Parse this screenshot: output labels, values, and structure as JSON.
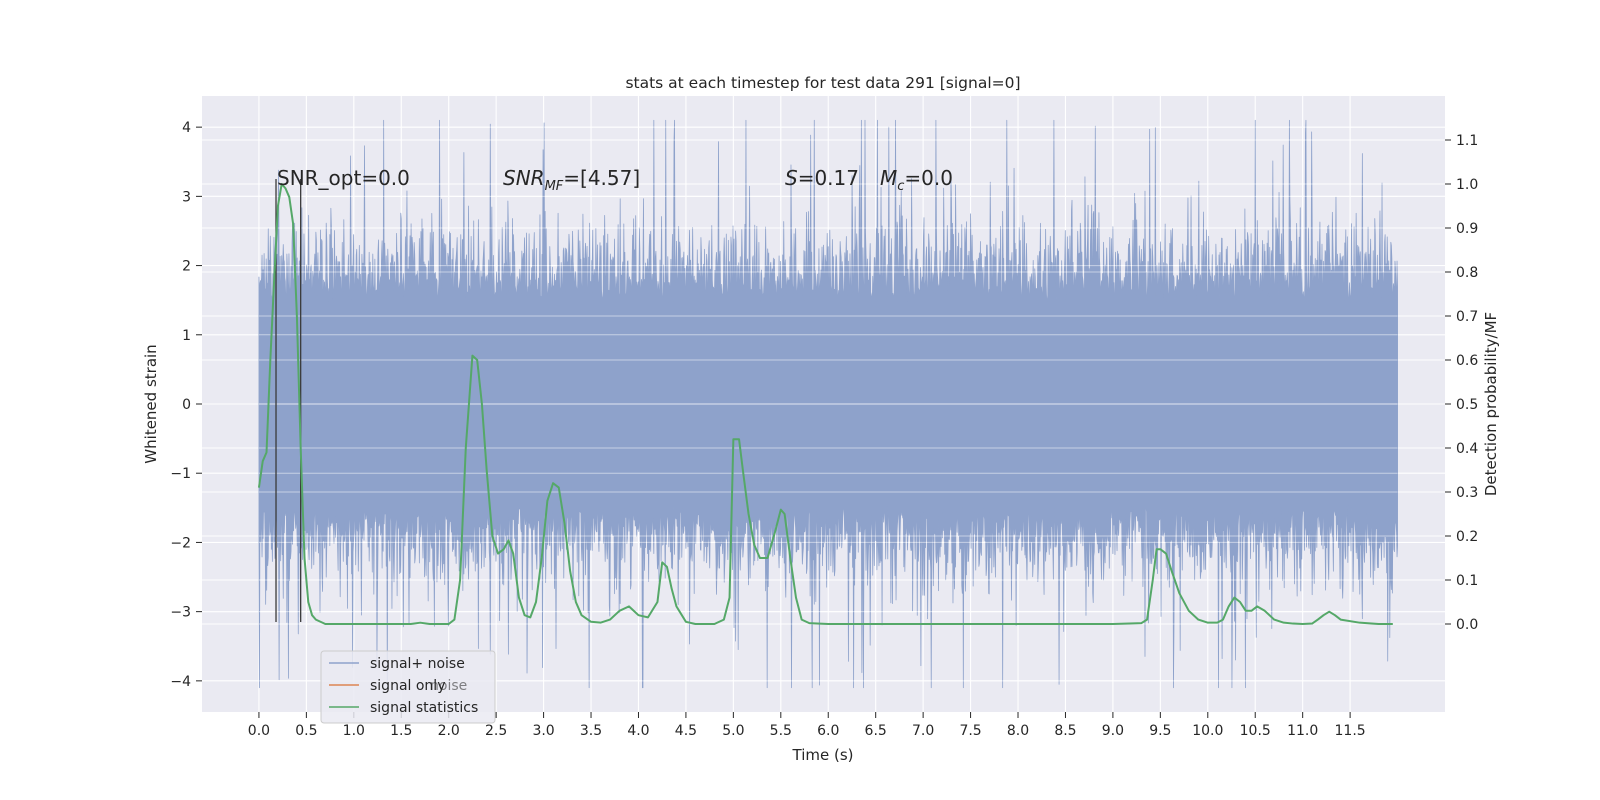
{
  "chart_data": {
    "type": "line",
    "title": "stats at each timestep for test data 291 [signal=0]",
    "xlabel": "Time (s)",
    "ylabel": "Whitened strain",
    "ylabel_right": "Detection probability/MF",
    "xlim": [
      -0.6,
      12.5
    ],
    "ylim": [
      -4.45,
      4.45
    ],
    "ylim_right": [
      -0.2,
      1.2
    ],
    "x_ticks": [
      0.0,
      0.5,
      1.0,
      1.5,
      2.0,
      2.5,
      3.0,
      3.5,
      4.0,
      4.5,
      5.0,
      5.5,
      6.0,
      6.5,
      7.0,
      7.5,
      8.0,
      8.5,
      9.0,
      9.5,
      10.0,
      10.5,
      11.0,
      11.5
    ],
    "x_tick_labels": [
      "0.0",
      "0.5",
      "1.0",
      "1.5",
      "2.0",
      "2.5",
      "3.0",
      "3.5",
      "4.0",
      "4.5",
      "5.0",
      "5.5",
      "6.0",
      "6.5",
      "7.0",
      "7.5",
      "8.0",
      "8.5",
      "9.0",
      "9.5",
      "10.0",
      "10.5",
      "11.0",
      "11.5"
    ],
    "y_ticks": [
      4,
      3,
      2,
      1,
      0,
      -1,
      -2,
      -3,
      -4
    ],
    "y_tick_labels": [
      "4",
      "3",
      "2",
      "1",
      "0",
      "−1",
      "−2",
      "−3",
      "−4"
    ],
    "y_right_ticks": [
      1.1,
      1.0,
      0.9,
      0.8,
      0.7,
      0.6,
      0.5,
      0.4,
      0.3,
      0.2,
      0.1,
      0.0
    ],
    "y_right_tick_labels": [
      "1.1",
      "1.0",
      "0.9",
      "0.8",
      "0.7",
      "0.6",
      "0.5",
      "0.4",
      "0.3",
      "0.2",
      "0.1",
      "0.0"
    ],
    "grid": true,
    "legend_position": "lower-left",
    "noise": {
      "x_range": [
        0.0,
        12.0
      ],
      "typical_amplitude": 1.3,
      "max_amplitude": 4.1,
      "color": "#8ea2cb"
    },
    "markers": {
      "x": [
        0.18,
        0.44
      ],
      "y_range": [
        -3.15,
        3.25
      ],
      "color": "#3a3a3a"
    },
    "series": [
      {
        "name": "signal+ noise",
        "color": "#8ea2cb"
      },
      {
        "name": "signal only",
        "color": "#dd8452"
      },
      {
        "name": "signal statistics",
        "color": "#55a868",
        "x": [
          0.0,
          0.04,
          0.08,
          0.12,
          0.16,
          0.2,
          0.24,
          0.28,
          0.32,
          0.36,
          0.4,
          0.44,
          0.48,
          0.52,
          0.56,
          0.6,
          0.7,
          0.8,
          1.0,
          1.2,
          1.4,
          1.6,
          1.7,
          1.8,
          2.0,
          2.06,
          2.12,
          2.18,
          2.25,
          2.3,
          2.35,
          2.4,
          2.46,
          2.52,
          2.58,
          2.63,
          2.68,
          2.74,
          2.8,
          2.86,
          2.92,
          2.98,
          3.04,
          3.1,
          3.16,
          3.22,
          3.28,
          3.34,
          3.4,
          3.5,
          3.6,
          3.7,
          3.8,
          3.9,
          4.0,
          4.1,
          4.2,
          4.25,
          4.3,
          4.35,
          4.4,
          4.5,
          4.6,
          4.8,
          4.9,
          4.96,
          5.0,
          5.06,
          5.1,
          5.16,
          5.22,
          5.28,
          5.36,
          5.44,
          5.5,
          5.54,
          5.6,
          5.66,
          5.72,
          5.8,
          6.0,
          7.0,
          8.0,
          9.0,
          9.3,
          9.36,
          9.42,
          9.46,
          9.5,
          9.56,
          9.62,
          9.7,
          9.8,
          9.9,
          10.0,
          10.1,
          10.16,
          10.22,
          10.28,
          10.34,
          10.4,
          10.46,
          10.52,
          10.6,
          10.7,
          10.8,
          10.9,
          11.0,
          11.1,
          11.16,
          11.22,
          11.28,
          11.34,
          11.4,
          11.6,
          11.8,
          11.9,
          11.95
        ],
        "y": [
          0.31,
          0.37,
          0.39,
          0.6,
          0.78,
          0.95,
          1.0,
          0.99,
          0.97,
          0.91,
          0.7,
          0.4,
          0.15,
          0.05,
          0.02,
          0.01,
          0.0,
          0.0,
          0.0,
          0.0,
          0.0,
          0.0,
          0.003,
          0.0,
          0.0,
          0.01,
          0.1,
          0.4,
          0.61,
          0.6,
          0.5,
          0.35,
          0.2,
          0.16,
          0.17,
          0.19,
          0.16,
          0.06,
          0.02,
          0.015,
          0.05,
          0.15,
          0.28,
          0.32,
          0.31,
          0.23,
          0.12,
          0.05,
          0.02,
          0.005,
          0.003,
          0.01,
          0.03,
          0.04,
          0.02,
          0.015,
          0.05,
          0.14,
          0.13,
          0.08,
          0.04,
          0.005,
          0.0,
          0.0,
          0.01,
          0.06,
          0.42,
          0.42,
          0.35,
          0.25,
          0.18,
          0.15,
          0.15,
          0.21,
          0.26,
          0.25,
          0.15,
          0.06,
          0.01,
          0.002,
          0.0,
          0.0,
          0.0,
          0.0,
          0.002,
          0.01,
          0.1,
          0.17,
          0.17,
          0.16,
          0.12,
          0.07,
          0.03,
          0.01,
          0.003,
          0.003,
          0.01,
          0.04,
          0.06,
          0.05,
          0.03,
          0.03,
          0.04,
          0.03,
          0.01,
          0.003,
          0.001,
          0.0,
          0.001,
          0.01,
          0.02,
          0.028,
          0.02,
          0.01,
          0.003,
          0.0,
          0.0,
          0.0
        ]
      }
    ],
    "legend_overlap_text": "noise",
    "annotations": {
      "snr_opt": "SNR_opt=0.0",
      "snr_mf_main": "SNR",
      "snr_mf_sub": "MF",
      "snr_mf_rest": "=[4.57]",
      "s_main": "S",
      "s_rest": "=0.17",
      "mc_main": "M",
      "mc_sub": "c",
      "mc_rest": "=0.0"
    }
  }
}
